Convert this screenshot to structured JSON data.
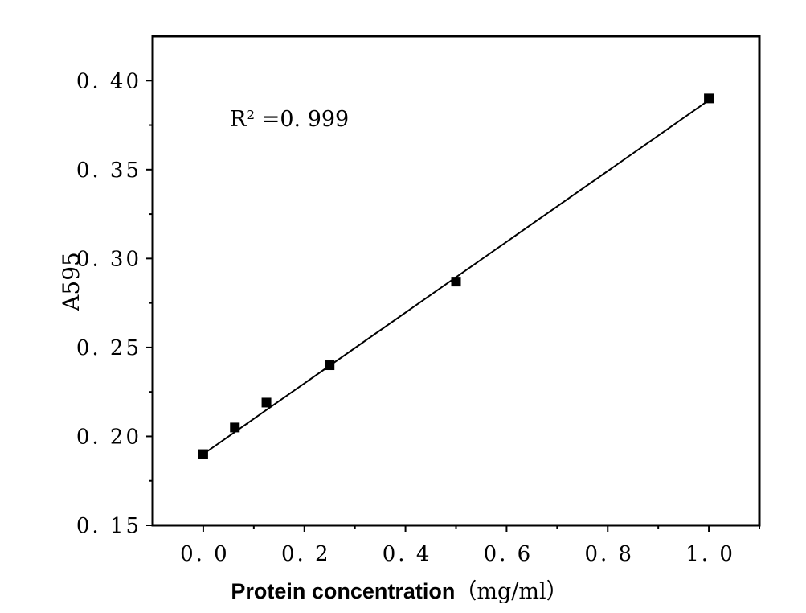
{
  "chart_data": {
    "type": "scatter",
    "xlabel": "Protein concentration",
    "xlabel_unit": "（mg/ml）",
    "ylabel": "A595",
    "annotation": "R² =0. 999",
    "xlim": [
      -0.1,
      1.1
    ],
    "ylim": [
      0.15,
      0.425
    ],
    "xticks": [
      0.0,
      0.2,
      0.4,
      0.6,
      0.8,
      1.0
    ],
    "xtick_labels": [
      "0. 0",
      "0. 2",
      "0. 4",
      "0. 6",
      "0. 8",
      "1. 0"
    ],
    "yticks": [
      0.15,
      0.2,
      0.25,
      0.3,
      0.35,
      0.4
    ],
    "ytick_labels": [
      "0. 15",
      "0. 20",
      "0. 25",
      "0. 30",
      "0. 35",
      "0. 40"
    ],
    "series": [
      {
        "marker": "square",
        "x": [
          0.0,
          0.0625,
          0.125,
          0.25,
          0.5,
          1.0
        ],
        "y": [
          0.19,
          0.205,
          0.219,
          0.24,
          0.287,
          0.39
        ]
      }
    ],
    "fit_line": {
      "x": [
        0.0,
        1.0
      ],
      "y": [
        0.19,
        0.389
      ]
    },
    "grid": false
  }
}
